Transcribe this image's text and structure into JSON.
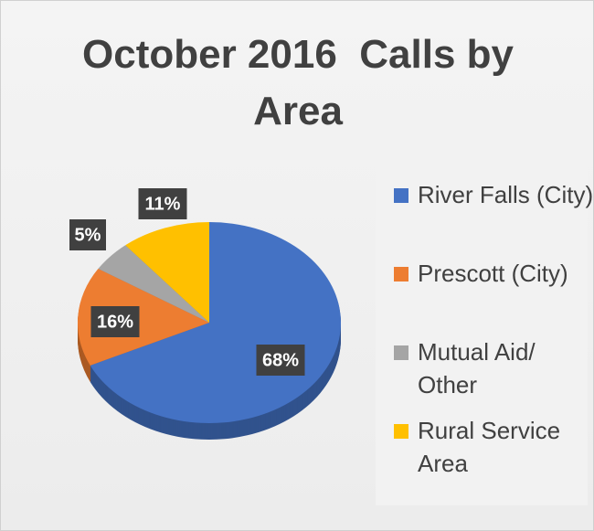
{
  "chart_data": {
    "type": "pie",
    "title": "October 2016  Calls by Area",
    "categories": [
      "River Falls (City)",
      "Prescott (City)",
      "Mutual Aid/ Other",
      "Rural Service Area"
    ],
    "values": [
      68,
      16,
      5,
      11
    ],
    "value_labels": [
      "68%",
      "16%",
      "5%",
      "11%"
    ],
    "colors": [
      "#4472c4",
      "#ed7d31",
      "#a5a5a5",
      "#ffc000"
    ],
    "legend": "right"
  }
}
